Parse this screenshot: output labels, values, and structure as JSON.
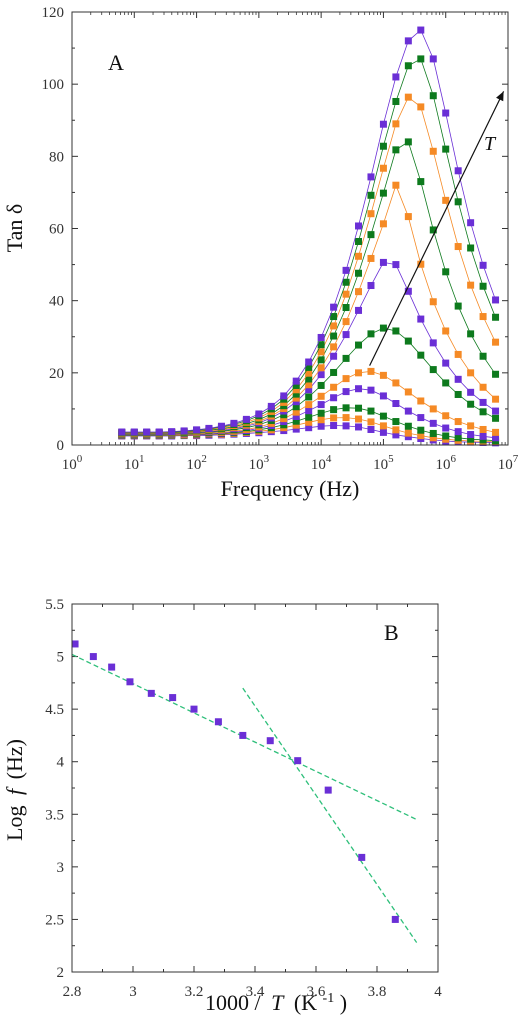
{
  "colors": {
    "purple": "#6a2fd6",
    "orange": "#f58a25",
    "green": "#0d7a1d",
    "fit": "#2ebf7a",
    "axis": "#333333"
  },
  "chart_data": [
    {
      "panel": "A",
      "type": "line",
      "ylabel": "Tan δ",
      "xlabel": "Frequency (Hz)",
      "xscale": "log",
      "xlim": [
        1,
        10000000
      ],
      "ylim": [
        0,
        120
      ],
      "xtick_labels": [
        {
          "base": "10",
          "exp": "0"
        },
        {
          "base": "10",
          "exp": "1"
        },
        {
          "base": "10",
          "exp": "2"
        },
        {
          "base": "10",
          "exp": "3"
        },
        {
          "base": "10",
          "exp": "4"
        },
        {
          "base": "10",
          "exp": "5"
        },
        {
          "base": "10",
          "exp": "6"
        },
        {
          "base": "10",
          "exp": "7"
        }
      ],
      "ytick_labels": [
        "0",
        "20",
        "40",
        "60",
        "80",
        "100",
        "120"
      ],
      "annotation_label": "T",
      "annotation_arrow": {
        "from": [
          60000,
          22
        ],
        "to": [
          8500000,
          98
        ]
      },
      "x": [
        6.3,
        10,
        15.8,
        25.1,
        39.8,
        63.1,
        100,
        158,
        251,
        398,
        631,
        1000,
        1585,
        2512,
        3981,
        6310,
        10000,
        15850,
        25120,
        39810,
        63100,
        100000,
        158500,
        251200,
        398100,
        631000,
        1000000,
        1585000,
        2512000,
        3981000,
        6310000
      ],
      "series": [
        {
          "color": "purple",
          "values": [
            2.5,
            2.5,
            2.5,
            2.5,
            2.5,
            2.6,
            2.6,
            2.7,
            2.8,
            3.0,
            3.2,
            3.4,
            3.7,
            4.0,
            4.4,
            4.8,
            5.2,
            5.4,
            5.3,
            5.0,
            4.3,
            3.5,
            2.8,
            2.3,
            1.8,
            1.4,
            1.1,
            0.9,
            0.8,
            0.7,
            0.6
          ]
        },
        {
          "color": "orange",
          "values": [
            2.6,
            2.6,
            2.6,
            2.6,
            2.7,
            2.7,
            2.8,
            2.9,
            3.0,
            3.2,
            3.5,
            3.8,
            4.2,
            4.8,
            5.5,
            6.3,
            7.0,
            7.5,
            7.6,
            7.2,
            6.4,
            5.3,
            4.2,
            3.3,
            2.6,
            2.0,
            1.6,
            1.3,
            1.1,
            1.0,
            0.9
          ]
        },
        {
          "color": "green",
          "values": [
            2.7,
            2.7,
            2.7,
            2.7,
            2.8,
            2.8,
            2.9,
            3.0,
            3.2,
            3.4,
            3.7,
            4.2,
            4.8,
            5.6,
            6.6,
            7.7,
            8.8,
            9.8,
            10.3,
            10.2,
            9.4,
            8.0,
            6.5,
            5.2,
            4.1,
            3.2,
            2.5,
            2.0,
            1.6,
            1.4,
            1.2
          ]
        },
        {
          "color": "purple",
          "values": [
            2.8,
            2.8,
            2.8,
            2.8,
            2.9,
            2.9,
            3.0,
            3.1,
            3.3,
            3.6,
            4.0,
            4.6,
            5.4,
            6.5,
            7.9,
            9.5,
            11.2,
            13.1,
            14.8,
            15.6,
            15.2,
            13.6,
            11.5,
            9.4,
            7.6,
            6.0,
            4.7,
            3.7,
            2.9,
            2.4,
            2.0
          ]
        },
        {
          "color": "orange",
          "values": [
            2.9,
            2.9,
            2.9,
            2.9,
            3.0,
            3.0,
            3.1,
            3.3,
            3.5,
            3.8,
            4.3,
            5.0,
            6.0,
            7.3,
            9.1,
            11.2,
            13.5,
            16.0,
            18.4,
            20.0,
            20.4,
            19.3,
            17.2,
            14.7,
            12.2,
            10.0,
            8.1,
            6.5,
            5.3,
            4.3,
            3.5
          ]
        },
        {
          "color": "green",
          "values": [
            3.0,
            3.0,
            3.0,
            3.0,
            3.1,
            3.2,
            3.3,
            3.5,
            3.8,
            4.2,
            4.8,
            5.6,
            6.8,
            8.4,
            10.6,
            13.3,
            16.5,
            20.1,
            24.0,
            27.7,
            30.8,
            32.4,
            31.6,
            28.8,
            24.9,
            20.9,
            17.2,
            14.0,
            11.3,
            9.2,
            7.4
          ]
        },
        {
          "color": "purple",
          "values": [
            3.1,
            3.1,
            3.1,
            3.1,
            3.2,
            3.3,
            3.5,
            3.7,
            4.0,
            4.5,
            5.2,
            6.1,
            7.5,
            9.4,
            12.0,
            15.3,
            19.5,
            24.6,
            30.6,
            37.3,
            44.2,
            50.6,
            50.0,
            42.6,
            34.9,
            28.3,
            22.7,
            18.2,
            14.6,
            11.8,
            9.4
          ]
        },
        {
          "color": "orange",
          "values": [
            3.2,
            3.2,
            3.2,
            3.2,
            3.3,
            3.4,
            3.6,
            3.9,
            4.2,
            4.8,
            5.5,
            6.5,
            8.0,
            10.1,
            13.0,
            16.7,
            21.4,
            27.2,
            34.2,
            42.5,
            51.7,
            61.3,
            72.0,
            63.3,
            50.1,
            39.7,
            31.6,
            25.1,
            20.0,
            16.0,
            12.7
          ]
        },
        {
          "color": "green",
          "values": [
            3.3,
            3.3,
            3.3,
            3.3,
            3.4,
            3.5,
            3.8,
            4.1,
            4.5,
            5.1,
            5.9,
            7.0,
            8.6,
            10.9,
            14.1,
            18.3,
            23.6,
            30.2,
            38.1,
            47.6,
            58.3,
            69.8,
            81.8,
            84.0,
            73.0,
            59.6,
            48.0,
            38.5,
            30.8,
            24.6,
            19.6
          ]
        },
        {
          "color": "orange",
          "values": [
            3.4,
            3.4,
            3.4,
            3.4,
            3.5,
            3.7,
            3.9,
            4.3,
            4.8,
            5.4,
            6.3,
            7.5,
            9.3,
            11.8,
            15.3,
            19.9,
            25.8,
            33.0,
            41.8,
            52.3,
            64.1,
            76.7,
            89.0,
            96.4,
            93.7,
            81.4,
            67.8,
            55.0,
            44.3,
            35.6,
            28.5
          ]
        },
        {
          "color": "green",
          "values": [
            3.5,
            3.5,
            3.5,
            3.5,
            3.6,
            3.8,
            4.1,
            4.5,
            5.0,
            5.7,
            6.7,
            8.1,
            10.0,
            12.7,
            16.5,
            21.5,
            27.8,
            35.6,
            45.1,
            56.4,
            69.2,
            82.8,
            95.2,
            105.1,
            107.0,
            96.8,
            82.0,
            67.4,
            54.6,
            44.0,
            35.4
          ]
        },
        {
          "color": "purple",
          "values": [
            3.6,
            3.6,
            3.6,
            3.6,
            3.7,
            3.9,
            4.2,
            4.6,
            5.2,
            6.0,
            7.1,
            8.6,
            10.7,
            13.6,
            17.7,
            23.0,
            29.8,
            38.2,
            48.4,
            60.7,
            74.3,
            88.9,
            102.0,
            112.0,
            115.0,
            107.0,
            92.0,
            76.0,
            61.6,
            49.8,
            40.2
          ]
        }
      ]
    },
    {
      "panel": "B",
      "type": "scatter",
      "ylabel_prefix": "Log",
      "ylabel_var": "f",
      "ylabel_unit": "(Hz)",
      "xlabel_prefix": "1000 /",
      "xlabel_var": "T",
      "xlabel_unit": "(K",
      "xlabel_exp": "-1",
      "xlabel_close": ")",
      "xlim": [
        2.8,
        4.0
      ],
      "ylim": [
        2.0,
        5.5
      ],
      "xtick_labels": [
        "2.8",
        "3",
        "3.2",
        "3.4",
        "3.6",
        "3.8",
        "4"
      ],
      "ytick_labels": [
        "2",
        "2.5",
        "3",
        "3.5",
        "4",
        "4.5",
        "5",
        "5.5"
      ],
      "points": [
        {
          "x": 2.81,
          "y": 5.12
        },
        {
          "x": 2.87,
          "y": 5.0
        },
        {
          "x": 2.93,
          "y": 4.9
        },
        {
          "x": 2.99,
          "y": 4.76
        },
        {
          "x": 3.06,
          "y": 4.65
        },
        {
          "x": 3.13,
          "y": 4.61
        },
        {
          "x": 3.2,
          "y": 4.5
        },
        {
          "x": 3.28,
          "y": 4.38
        },
        {
          "x": 3.36,
          "y": 4.25
        },
        {
          "x": 3.45,
          "y": 4.2
        },
        {
          "x": 3.54,
          "y": 4.01
        },
        {
          "x": 3.64,
          "y": 3.73
        },
        {
          "x": 3.75,
          "y": 3.09
        },
        {
          "x": 3.86,
          "y": 2.5
        }
      ],
      "fit_lines": [
        {
          "from": [
            2.8,
            5.02
          ],
          "to": [
            3.93,
            3.45
          ]
        },
        {
          "from": [
            3.36,
            4.7
          ],
          "to": [
            3.93,
            2.28
          ]
        }
      ]
    }
  ]
}
